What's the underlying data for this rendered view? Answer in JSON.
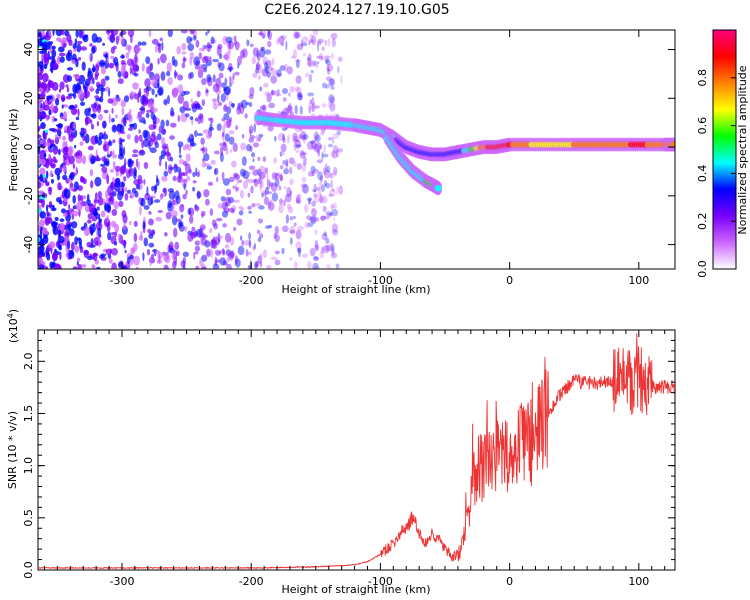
{
  "title": "C2E6.2024.127.19.10.G05",
  "chart_data": [
    {
      "type": "heatmap",
      "xlabel": "Height of straight line (km)",
      "ylabel": "Frequency (Hz)",
      "xlim": [
        -365,
        128
      ],
      "ylim": [
        -50,
        48
      ],
      "xticks": [
        -300,
        -200,
        -100,
        0,
        100
      ],
      "yticks": [
        -40,
        -20,
        0,
        20,
        40
      ],
      "colorbar": {
        "label": "Normalized spectral amplitude",
        "range": [
          0,
          1
        ],
        "ticks": [
          "0.0",
          "0.2",
          "0.4",
          "0.6",
          "0.8"
        ],
        "colors": [
          "#ffffff",
          "#cc66ff",
          "#7700ff",
          "#0000ff",
          "#00ffff",
          "#00ff00",
          "#ffff00",
          "#ff8000",
          "#ff0000",
          "#ff0080"
        ]
      },
      "ridge": {
        "x": [
          -195,
          -180,
          -160,
          -140,
          -120,
          -110,
          -100,
          -90,
          -80,
          -70,
          -60,
          -50,
          -40,
          -30,
          -20,
          -10,
          0,
          20,
          40,
          60,
          80,
          100,
          120,
          128
        ],
        "freq": [
          12,
          11,
          10,
          10,
          9,
          8,
          7,
          4,
          0,
          -2,
          -3,
          -3,
          -2,
          -1,
          0,
          0,
          1,
          1,
          1,
          1,
          1,
          1,
          1,
          1
        ],
        "amplitude": [
          0.4,
          0.45,
          0.45,
          0.45,
          0.45,
          0.45,
          0.4,
          0.4,
          0.35,
          0.35,
          0.35,
          0.3,
          0.3,
          0.5,
          0.8,
          0.9,
          0.85,
          0.7,
          0.7,
          0.75,
          0.8,
          0.85,
          0.8,
          0.8
        ]
      },
      "branch": {
        "x": [
          -95,
          -85,
          -75,
          -65,
          -58,
          -55
        ],
        "freq": [
          4,
          -4,
          -10,
          -14,
          -16,
          -17
        ],
        "amplitude": [
          0.4,
          0.4,
          0.45,
          0.5,
          0.5,
          0.45
        ]
      }
    },
    {
      "type": "line",
      "xlabel": "Height of straight line (km)",
      "ylabel": "SNR (10 * v/v)",
      "y_multiplier": "(x10",
      "y_multiplier_exp": "4",
      "y_multiplier_close": ")",
      "xlim": [
        -365,
        128
      ],
      "ylim": [
        0,
        2.3
      ],
      "xticks": [
        -300,
        -200,
        -100,
        0,
        100
      ],
      "yticks": [
        "0.0",
        "0.5",
        "1.0",
        "1.5",
        "2.0"
      ],
      "line_color": "#ee3333",
      "x": [
        -365,
        -300,
        -250,
        -200,
        -150,
        -120,
        -110,
        -100,
        -90,
        -80,
        -75,
        -70,
        -65,
        -60,
        -55,
        -50,
        -45,
        -40,
        -35,
        -30,
        -25,
        -20,
        -15,
        -10,
        -5,
        0,
        10,
        20,
        30,
        40,
        50,
        60,
        70,
        80,
        90,
        95,
        100,
        105,
        110,
        120,
        128
      ],
      "values": [
        0.02,
        0.02,
        0.02,
        0.02,
        0.03,
        0.05,
        0.08,
        0.15,
        0.25,
        0.42,
        0.5,
        0.35,
        0.25,
        0.35,
        0.3,
        0.2,
        0.12,
        0.15,
        0.3,
        0.7,
        1.0,
        0.95,
        1.05,
        1.1,
        1.05,
        1.1,
        1.2,
        1.25,
        1.5,
        1.7,
        1.8,
        1.8,
        1.8,
        1.8,
        1.82,
        1.8,
        1.85,
        1.75,
        1.75,
        1.75,
        1.75
      ]
    }
  ]
}
